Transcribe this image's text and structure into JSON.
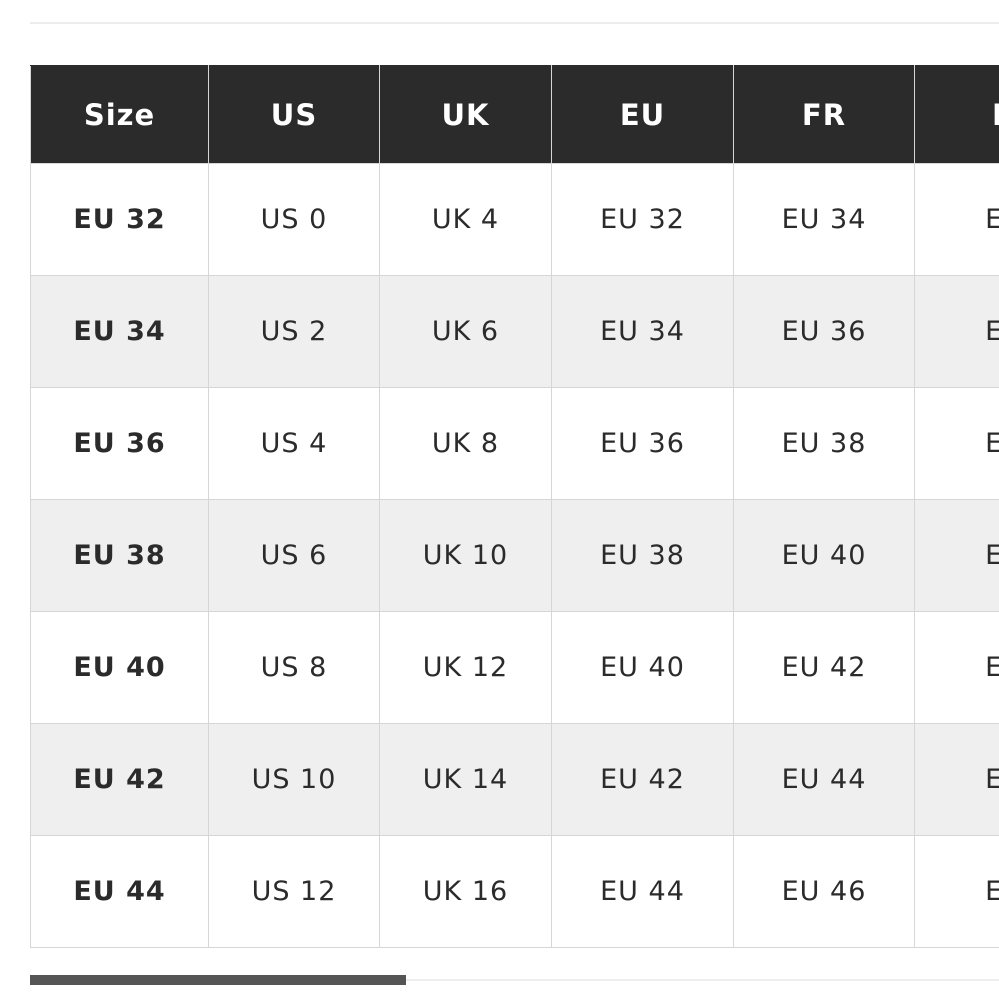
{
  "table": {
    "header": [
      "Size",
      "US",
      "UK",
      "EU",
      "FR",
      "D"
    ],
    "rows": [
      [
        "EU 32",
        "US 0",
        "UK 4",
        "EU 32",
        "EU 34",
        "EU"
      ],
      [
        "EU 34",
        "US 2",
        "UK 6",
        "EU 34",
        "EU 36",
        "EU"
      ],
      [
        "EU 36",
        "US 4",
        "UK 8",
        "EU 36",
        "EU 38",
        "EU"
      ],
      [
        "EU 38",
        "US 6",
        "UK 10",
        "EU 38",
        "EU 40",
        "EU"
      ],
      [
        "EU 40",
        "US 8",
        "UK 12",
        "EU 40",
        "EU 42",
        "EU"
      ],
      [
        "EU 42",
        "US 10",
        "UK 14",
        "EU 42",
        "EU 44",
        "EU"
      ],
      [
        "EU 44",
        "US 12",
        "UK 16",
        "EU 44",
        "EU 46",
        "EU"
      ]
    ]
  }
}
